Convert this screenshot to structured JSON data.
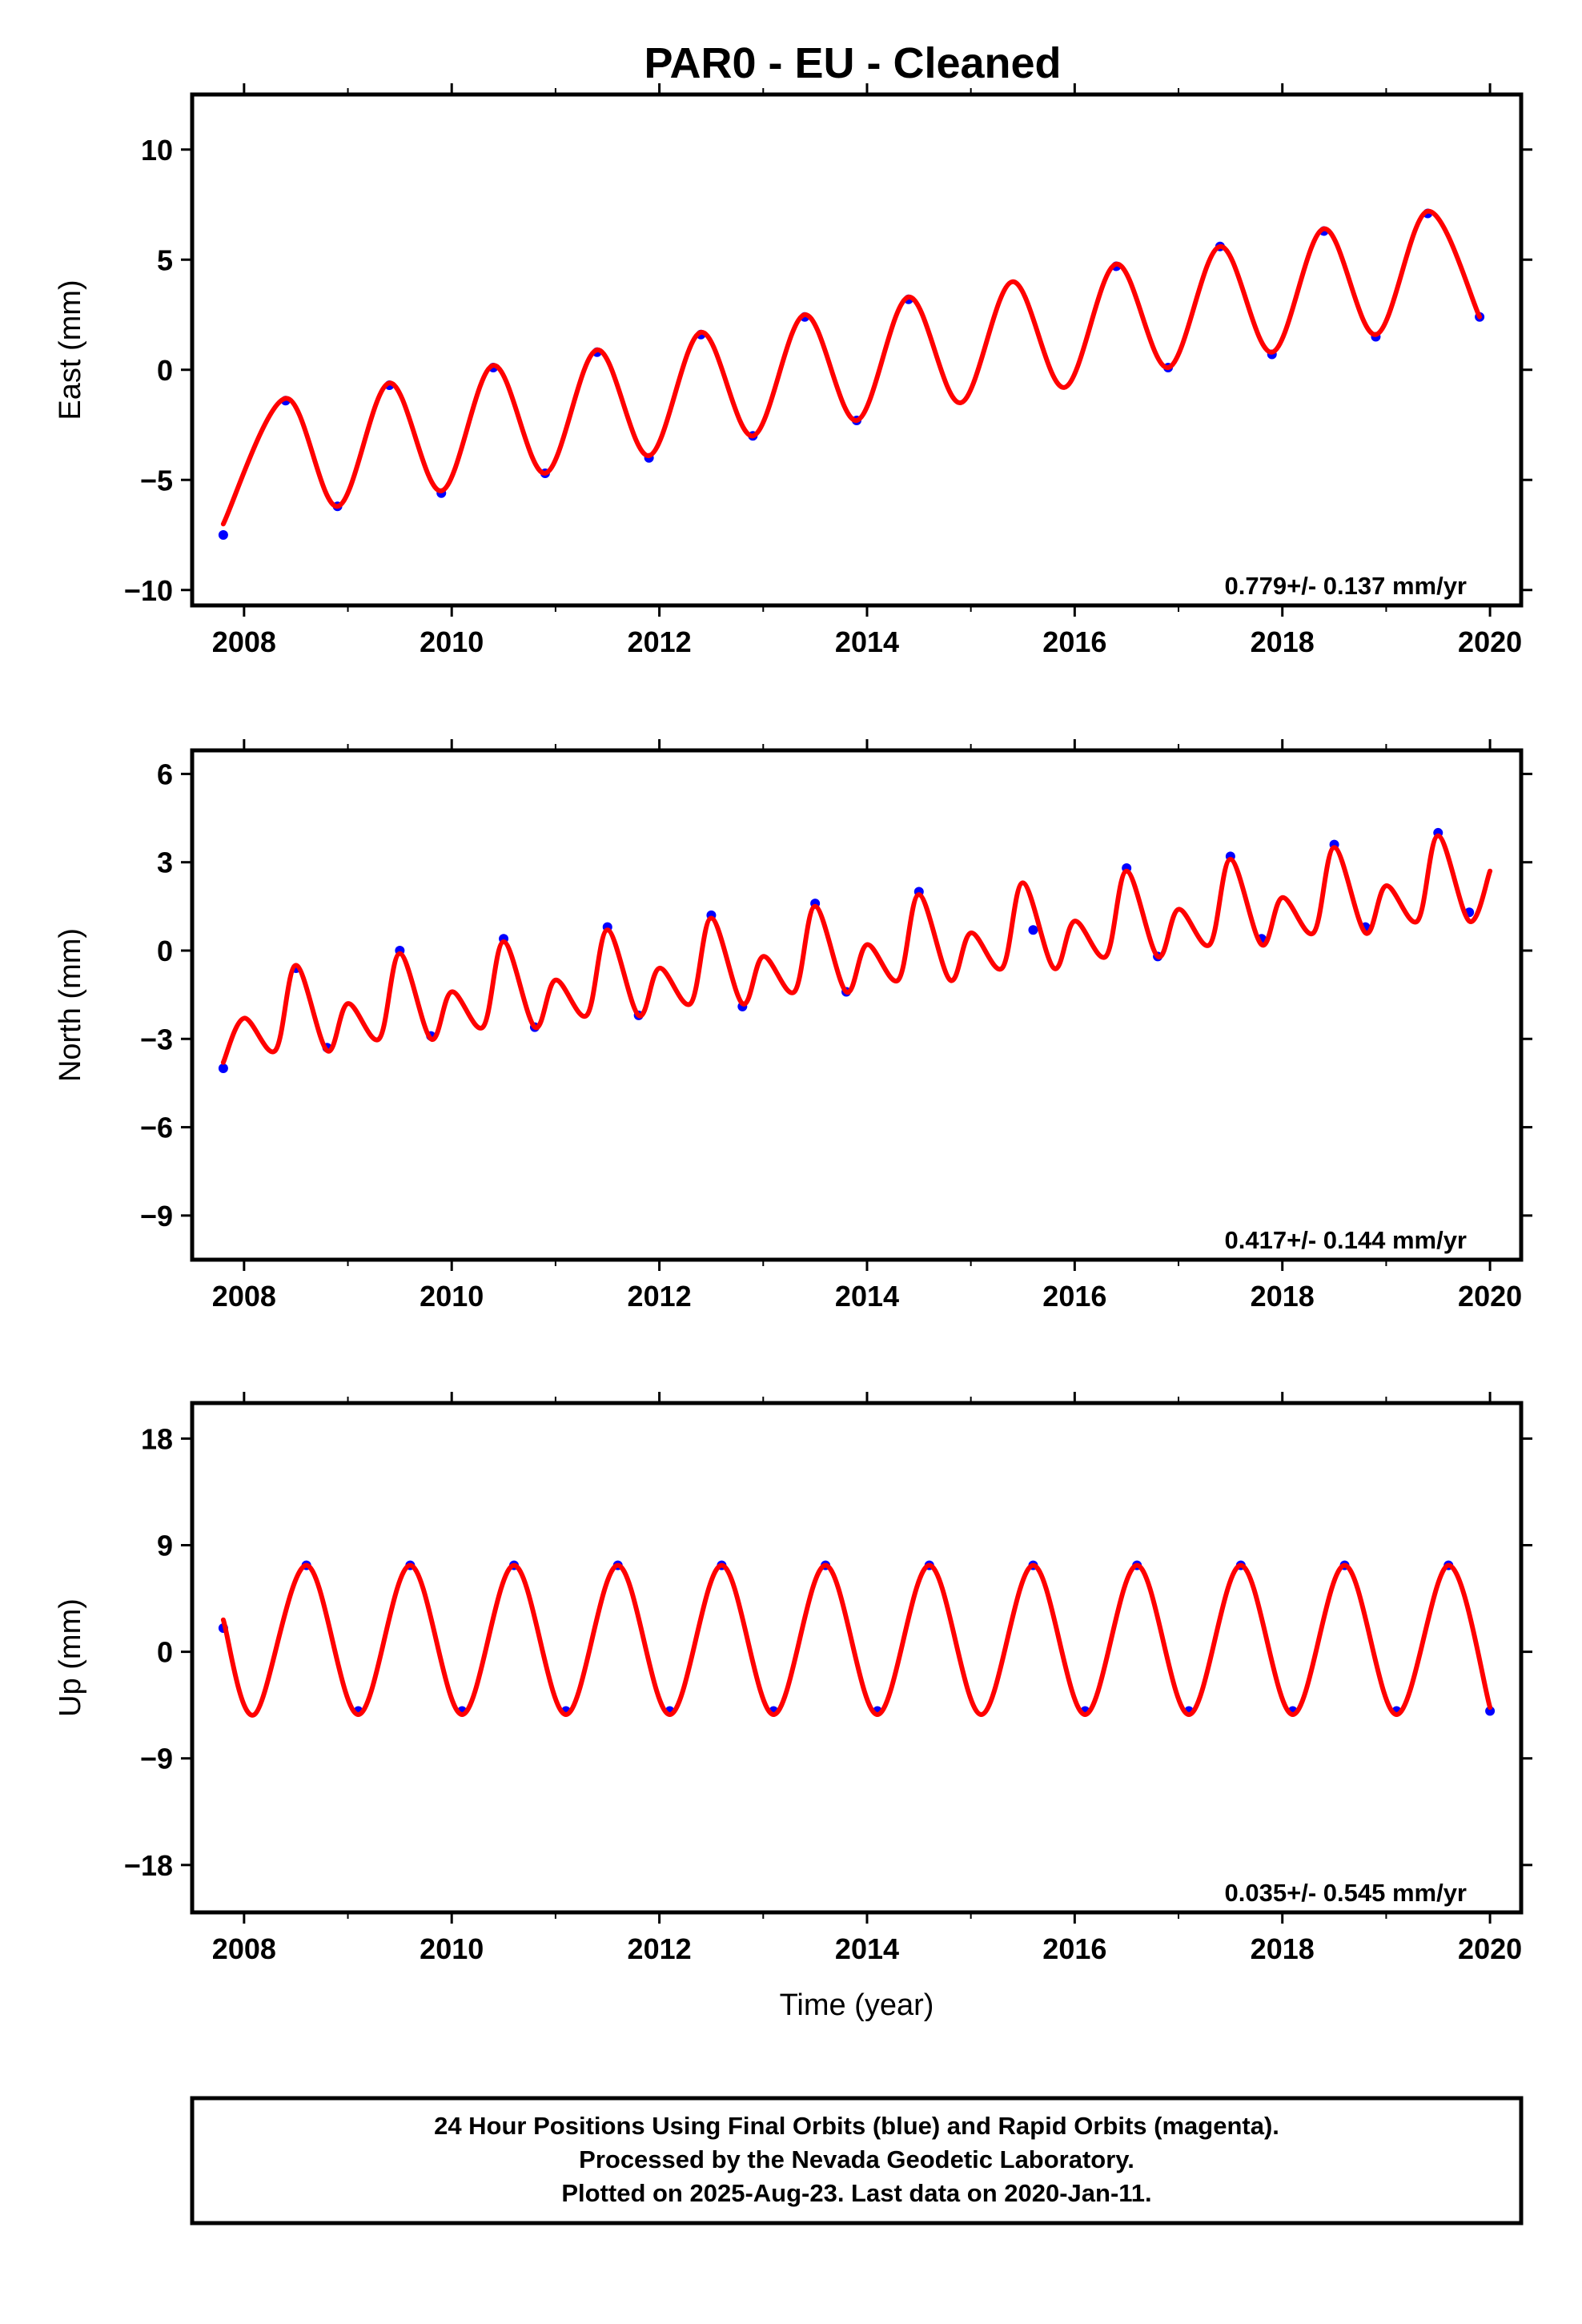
{
  "title": "PAR0  - EU - Cleaned",
  "chart_data": [
    {
      "type": "scatter",
      "panel": "east",
      "ylabel": "East (mm)",
      "xlabel": "",
      "xlim": [
        2007.5,
        2020.3
      ],
      "ylim": [
        -10.7,
        12.5
      ],
      "xticks": [
        "2008",
        "2010",
        "2012",
        "2014",
        "2016",
        "2018",
        "2020"
      ],
      "xtick_values": [
        2008,
        2010,
        2012,
        2014,
        2016,
        2018,
        2020
      ],
      "yticks": [
        "10",
        "5",
        "0",
        "−5",
        "−10"
      ],
      "ytick_values": [
        10,
        5,
        0,
        -5,
        -10
      ],
      "rate_label": "0.779+/- 0.137 mm/yr",
      "series": [
        {
          "color": "#0000ff",
          "x": [
            2007.8,
            2008.4,
            2008.9,
            2009.4,
            2009.9,
            2010.4,
            2010.9,
            2011.4,
            2011.9,
            2012.4,
            2012.9,
            2013.4,
            2013.9,
            2014.4,
            2016.4,
            2016.9,
            2017.4,
            2017.9,
            2018.4,
            2018.9,
            2019.4,
            2019.9
          ],
          "y": [
            -7.5,
            -1.4,
            -6.2,
            -0.7,
            -5.6,
            0.1,
            -4.7,
            0.8,
            -4.0,
            1.6,
            -3.0,
            2.4,
            -2.3,
            3.2,
            4.7,
            0.1,
            5.6,
            0.7,
            6.3,
            1.5,
            7.1,
            2.4
          ]
        },
        {
          "color": "#ff0000",
          "x": [
            2007.8,
            2008.4,
            2008.9,
            2009.4,
            2009.9,
            2010.4,
            2010.9,
            2011.4,
            2011.9,
            2012.4,
            2012.9,
            2013.4,
            2013.9,
            2014.4,
            2014.9,
            2015.4,
            2015.9,
            2016.4,
            2016.9,
            2017.4,
            2017.9,
            2018.4,
            2018.9,
            2019.4,
            2019.9
          ],
          "y": [
            -7.0,
            -1.3,
            -6.2,
            -0.6,
            -5.5,
            0.2,
            -4.7,
            0.9,
            -3.9,
            1.7,
            -3.0,
            2.5,
            -2.3,
            3.3,
            -1.5,
            4.0,
            -0.8,
            4.8,
            0.1,
            5.6,
            0.8,
            6.4,
            1.6,
            7.2,
            2.4
          ]
        }
      ]
    },
    {
      "type": "scatter",
      "panel": "north",
      "ylabel": "North (mm)",
      "xlabel": "",
      "xlim": [
        2007.5,
        2020.3
      ],
      "ylim": [
        -10.5,
        6.8
      ],
      "xticks": [
        "2008",
        "2010",
        "2012",
        "2014",
        "2016",
        "2018",
        "2020"
      ],
      "xtick_values": [
        2008,
        2010,
        2012,
        2014,
        2016,
        2018,
        2020
      ],
      "yticks": [
        "6",
        "3",
        "0",
        "−3",
        "−6",
        "−9"
      ],
      "ytick_values": [
        6,
        3,
        0,
        -3,
        -6,
        -9
      ],
      "rate_label": "0.417+/- 0.144 mm/yr",
      "series": [
        {
          "color": "#0000ff",
          "x": [
            2007.8,
            2008.5,
            2008.8,
            2009.5,
            2009.8,
            2010.5,
            2010.8,
            2011.5,
            2011.8,
            2012.5,
            2012.8,
            2013.5,
            2013.8,
            2014.5,
            2015.6,
            2016.5,
            2016.8,
            2017.5,
            2017.8,
            2018.5,
            2018.8,
            2019.5,
            2019.8
          ],
          "y": [
            -4.0,
            -0.6,
            -3.3,
            0.0,
            -2.9,
            0.4,
            -2.6,
            0.8,
            -2.2,
            1.2,
            -1.9,
            1.6,
            -1.4,
            2.0,
            0.7,
            2.8,
            -0.2,
            3.2,
            0.4,
            3.6,
            0.8,
            4.0,
            1.3
          ]
        },
        {
          "color": "#ff0000",
          "x": [
            2007.8,
            2008.0,
            2008.3,
            2008.5,
            2008.8,
            2009.0,
            2009.3,
            2009.5,
            2009.8,
            2010.0,
            2010.3,
            2010.5,
            2010.8,
            2011.0,
            2011.3,
            2011.5,
            2011.8,
            2012.0,
            2012.3,
            2012.5,
            2012.8,
            2013.0,
            2013.3,
            2013.5,
            2013.8,
            2014.0,
            2014.3,
            2014.5,
            2014.8,
            2015.0,
            2015.3,
            2015.5,
            2015.8,
            2016.0,
            2016.3,
            2016.5,
            2016.8,
            2017.0,
            2017.3,
            2017.5,
            2017.8,
            2018.0,
            2018.3,
            2018.5,
            2018.8,
            2019.0,
            2019.3,
            2019.5,
            2019.8,
            2020.0
          ],
          "y": [
            -3.8,
            -2.3,
            -3.4,
            -0.5,
            -3.4,
            -1.8,
            -3.0,
            -0.1,
            -3.0,
            -1.4,
            -2.6,
            0.3,
            -2.6,
            -1.0,
            -2.2,
            0.7,
            -2.2,
            -0.6,
            -1.8,
            1.1,
            -1.8,
            -0.2,
            -1.4,
            1.5,
            -1.4,
            0.2,
            -1.0,
            1.9,
            -1.0,
            0.6,
            -0.6,
            2.3,
            -0.6,
            1.0,
            -0.2,
            2.7,
            -0.2,
            1.4,
            0.2,
            3.1,
            0.2,
            1.8,
            0.6,
            3.5,
            0.6,
            2.2,
            1.0,
            3.9,
            1.0,
            2.7
          ]
        }
      ]
    },
    {
      "type": "scatter",
      "panel": "up",
      "ylabel": "Up (mm)",
      "xlabel": "Time (year)",
      "xlim": [
        2007.5,
        2020.3
      ],
      "ylim": [
        -22.0,
        21.0
      ],
      "xticks": [
        "2008",
        "2010",
        "2012",
        "2014",
        "2016",
        "2018",
        "2020"
      ],
      "xtick_values": [
        2008,
        2010,
        2012,
        2014,
        2016,
        2018,
        2020
      ],
      "yticks": [
        "18",
        "9",
        "0",
        "−9",
        "−18"
      ],
      "ytick_values": [
        18,
        9,
        0,
        -9,
        -18
      ],
      "rate_label": "0.035+/- 0.545 mm/yr",
      "series": [
        {
          "color": "#0000ff",
          "x": [
            2007.8,
            2008.6,
            2009.1,
            2009.6,
            2010.1,
            2010.6,
            2011.1,
            2011.6,
            2012.1,
            2012.6,
            2013.1,
            2013.6,
            2014.1,
            2014.6,
            2015.6,
            2016.1,
            2016.6,
            2017.1,
            2017.6,
            2018.1,
            2018.6,
            2019.1,
            2019.6,
            2020.0
          ],
          "y": [
            2.0,
            7.3,
            -5.0,
            7.3,
            -5.0,
            7.3,
            -5.0,
            7.3,
            -5.0,
            7.3,
            -5.0,
            7.3,
            -5.0,
            7.3,
            7.3,
            -5.0,
            7.3,
            -5.0,
            7.3,
            -5.0,
            7.3,
            -5.0,
            7.3,
            -5.0
          ]
        },
        {
          "color": "#ff0000",
          "x": [
            2007.8,
            2008.1,
            2008.6,
            2009.1,
            2009.6,
            2010.1,
            2010.6,
            2011.1,
            2011.6,
            2012.1,
            2012.6,
            2013.1,
            2013.6,
            2014.1,
            2014.6,
            2015.1,
            2015.6,
            2016.1,
            2016.6,
            2017.1,
            2017.6,
            2018.1,
            2018.6,
            2019.1,
            2019.6,
            2020.0
          ],
          "y": [
            2.7,
            -5.3,
            7.3,
            -5.3,
            7.3,
            -5.3,
            7.3,
            -5.3,
            7.3,
            -5.3,
            7.3,
            -5.3,
            7.3,
            -5.3,
            7.3,
            -5.3,
            7.3,
            -5.3,
            7.3,
            -5.3,
            7.3,
            -5.3,
            7.3,
            -5.3,
            7.3,
            -4.7
          ]
        }
      ]
    }
  ],
  "footer": {
    "line1": "24 Hour Positions Using Final Orbits (blue) and Rapid Orbits (magenta).",
    "line2": "Processed by the Nevada Geodetic Laboratory.",
    "line3": "Plotted on 2025-Aug-23. Last data on 2020-Jan-11."
  },
  "colors": {
    "points": "#0000ff",
    "model": "#ff0000",
    "frame": "#000000"
  }
}
